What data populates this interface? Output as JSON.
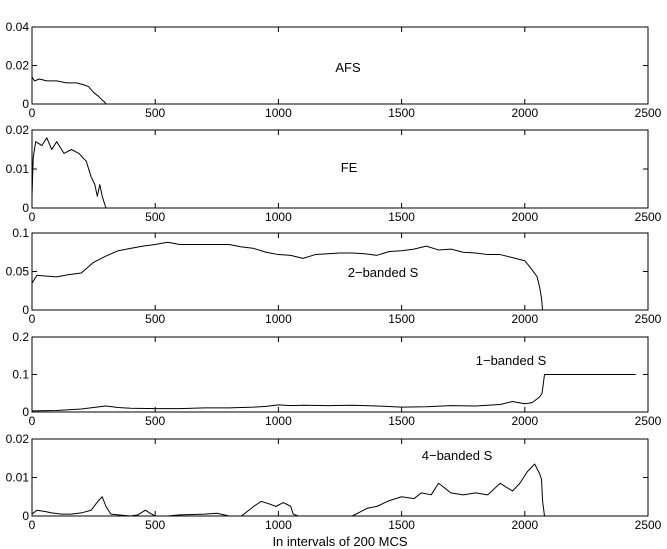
{
  "chart_data": {
    "type": "line",
    "xlabel": "In intervals of 200 MCS",
    "xlim": [
      0,
      2500
    ],
    "xticks": [
      0,
      500,
      1000,
      1500,
      2000,
      2500
    ],
    "grid": false,
    "panels": [
      {
        "label": "AFS",
        "ylim": [
          0,
          0.04
        ],
        "yticks": [
          "0",
          "0.02",
          "0.04"
        ],
        "series": [
          {
            "x": [
              0,
              10,
              30,
              60,
              100,
              140,
              180,
              210,
              230,
              250,
              270,
              285,
              295,
              300,
              2500
            ],
            "y": [
              0.014,
              0.012,
              0.013,
              0.012,
              0.012,
              0.011,
              0.011,
              0.01,
              0.009,
              0.006,
              0.004,
              0.002,
              0.001,
              0,
              0
            ]
          }
        ]
      },
      {
        "label": "FE",
        "ylim": [
          0,
          0.02
        ],
        "yticks": [
          "0",
          "0.01",
          "0.02"
        ],
        "series": [
          {
            "x": [
              0,
              5,
              15,
              40,
              60,
              80,
              100,
              130,
              160,
              190,
              220,
              240,
              255,
              265,
              275,
              285,
              295,
              300,
              2500
            ],
            "y": [
              0.003,
              0.013,
              0.017,
              0.016,
              0.018,
              0.015,
              0.017,
              0.014,
              0.015,
              0.014,
              0.012,
              0.008,
              0.006,
              0.003,
              0.006,
              0.003,
              0.001,
              0,
              0
            ]
          }
        ]
      },
      {
        "label": "2−banded S",
        "ylim": [
          0,
          0.1
        ],
        "yticks": [
          "0",
          "0.05",
          "0.1"
        ],
        "series": [
          {
            "x": [
              0,
              20,
              60,
              100,
              150,
              200,
              250,
              300,
              350,
              400,
              450,
              500,
              550,
              600,
              700,
              800,
              850,
              900,
              950,
              1000,
              1050,
              1100,
              1150,
              1200,
              1250,
              1300,
              1350,
              1400,
              1450,
              1500,
              1550,
              1600,
              1650,
              1700,
              1750,
              1800,
              1850,
              1900,
              1950,
              2000,
              2030,
              2050,
              2060,
              2068,
              2072
            ],
            "y": [
              0.035,
              0.045,
              0.044,
              0.043,
              0.046,
              0.048,
              0.062,
              0.07,
              0.077,
              0.08,
              0.083,
              0.085,
              0.088,
              0.085,
              0.085,
              0.085,
              0.082,
              0.08,
              0.075,
              0.072,
              0.071,
              0.067,
              0.072,
              0.073,
              0.074,
              0.074,
              0.073,
              0.071,
              0.076,
              0.077,
              0.079,
              0.083,
              0.078,
              0.079,
              0.075,
              0.074,
              0.072,
              0.072,
              0.068,
              0.064,
              0.052,
              0.043,
              0.03,
              0.015,
              0
            ]
          }
        ]
      },
      {
        "label": "1−banded S",
        "ylim": [
          0,
          0.2
        ],
        "yticks": [
          "0",
          "0.1",
          "0.2"
        ],
        "series": [
          {
            "x": [
              0,
              100,
              200,
              250,
              300,
              350,
              400,
              500,
              600,
              700,
              800,
              900,
              950,
              1000,
              1050,
              1100,
              1200,
              1300,
              1400,
              1500,
              1600,
              1700,
              1800,
              1900,
              1950,
              2000,
              2030,
              2060,
              2070,
              2080,
              2200,
              2300,
              2450
            ],
            "y": [
              0.003,
              0.004,
              0.008,
              0.012,
              0.016,
              0.012,
              0.01,
              0.009,
              0.009,
              0.011,
              0.011,
              0.013,
              0.015,
              0.019,
              0.017,
              0.018,
              0.017,
              0.018,
              0.016,
              0.013,
              0.014,
              0.017,
              0.016,
              0.02,
              0.028,
              0.022,
              0.025,
              0.04,
              0.05,
              0.1,
              0.1,
              0.1,
              0.1
            ]
          }
        ]
      },
      {
        "label": "4−banded S",
        "ylim": [
          0,
          0.02
        ],
        "yticks": [
          "0",
          "0.01",
          "0.02"
        ],
        "series": [
          {
            "x": [
              0,
              20,
              50,
              80,
              120,
              160,
              200,
              240,
              270,
              285,
              300,
              320,
              350,
              400,
              430,
              460,
              480,
              500,
              550,
              600,
              650,
              700,
              750,
              800,
              850,
              900,
              930,
              960,
              990,
              1020,
              1050,
              1060,
              1080,
              1200,
              1300,
              1330,
              1360,
              1400,
              1450,
              1500,
              1550,
              1580,
              1620,
              1650,
              1700,
              1750,
              1800,
              1850,
              1900,
              1950,
              1980,
              2010,
              2040,
              2060,
              2068,
              2072,
              2080,
              2500
            ],
            "y": [
              0.0005,
              0.0015,
              0.0012,
              0.0008,
              0.0005,
              0.0005,
              0.0008,
              0.0015,
              0.004,
              0.005,
              0.0025,
              0.0005,
              0.0003,
              0,
              0.0003,
              0.0015,
              0.0007,
              0,
              0,
              0.0003,
              0.0004,
              0.0005,
              0.0007,
              0,
              0,
              0.0025,
              0.0038,
              0.0032,
              0.0025,
              0.0035,
              0.0025,
              0.0005,
              0,
              0,
              0,
              0.001,
              0.002,
              0.0025,
              0.004,
              0.005,
              0.0045,
              0.006,
              0.0055,
              0.0085,
              0.006,
              0.0055,
              0.006,
              0.0055,
              0.0085,
              0.0065,
              0.0085,
              0.0115,
              0.0135,
              0.011,
              0.0095,
              0.004,
              0,
              0
            ]
          }
        ]
      }
    ]
  }
}
